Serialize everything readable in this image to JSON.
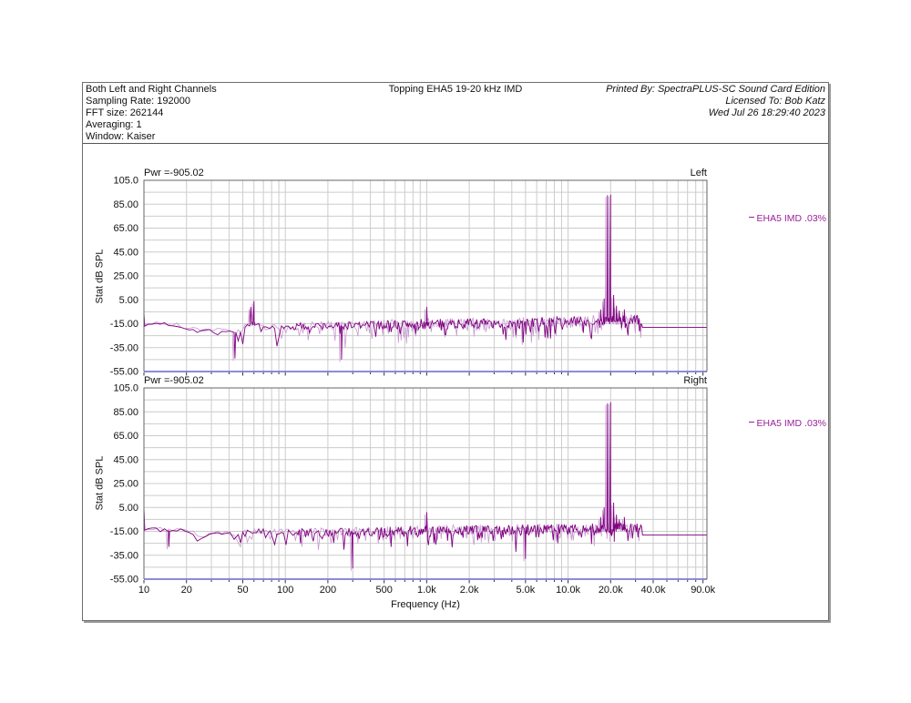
{
  "header": {
    "left_lines": [
      "Both Left and Right Channels",
      "Sampling Rate: 192000",
      "FFT size: 262144",
      "Averaging: 1",
      "Window: Kaiser"
    ],
    "title": "Topping EHA5 19-20 kHz IMD",
    "right_lines": [
      "Printed By: SpectraPLUS-SC Sound Card Edition",
      "Licensed To: Bob Katz",
      "Wed Jul 26 18:29:40 2023"
    ]
  },
  "colors": {
    "trace": "#800080",
    "trace_light": "#c79ad0",
    "legend_text": "#992299",
    "bottom_axis": "#4848c8",
    "grid": "#cccccc",
    "plot_border": "#666666",
    "tick": "#333333",
    "text": "#111111"
  },
  "chart_data": [
    {
      "type": "line",
      "name": "left-channel-spectrum",
      "corner_label": "Left",
      "pwr_label": "Pwr =-905.02",
      "legend": "EHA5 IMD .03%",
      "ylabel": "Stat dB SPL",
      "xlabel": "Frequency (Hz)",
      "x_scale": "log",
      "xlim": [
        10,
        96000
      ],
      "ylim": [
        -55,
        105
      ],
      "grid": true,
      "y_ticks": [
        [
          105,
          "105.0"
        ],
        [
          85,
          "85.00"
        ],
        [
          65,
          "65.00"
        ],
        [
          45,
          "45.00"
        ],
        [
          25,
          "25.00"
        ],
        [
          5,
          "5.00"
        ],
        [
          -15,
          "-15.00"
        ],
        [
          -35,
          "-35.00"
        ],
        [
          -55,
          "-55.00"
        ]
      ],
      "x_ticks": [
        [
          10,
          "10"
        ],
        [
          20,
          "20"
        ],
        [
          50,
          "50"
        ],
        [
          100,
          "100"
        ],
        [
          200,
          "200"
        ],
        [
          500,
          "500"
        ],
        [
          1000,
          "1.0k"
        ],
        [
          2000,
          "2.0k"
        ],
        [
          5000,
          "5.0k"
        ],
        [
          10000,
          "10.0k"
        ],
        [
          20000,
          "20.0k"
        ],
        [
          40000,
          "40.0k"
        ],
        [
          90000,
          "90.0k"
        ]
      ],
      "noise_floor_envelope": [
        [
          10,
          -16
        ],
        [
          13,
          -14.5
        ],
        [
          18,
          -17
        ],
        [
          24,
          -21
        ],
        [
          32,
          -20
        ],
        [
          40,
          -22
        ],
        [
          50,
          -20
        ],
        [
          57,
          -14
        ],
        [
          62,
          -16
        ],
        [
          70,
          -19
        ],
        [
          85,
          -18
        ],
        [
          120,
          -17.5
        ],
        [
          200,
          -17
        ],
        [
          400,
          -16
        ],
        [
          800,
          -15.5
        ],
        [
          1600,
          -15
        ],
        [
          3000,
          -14.5
        ],
        [
          6000,
          -14
        ],
        [
          10000,
          -13
        ],
        [
          15000,
          -12.5
        ],
        [
          20000,
          -12
        ],
        [
          27000,
          -12
        ],
        [
          33500,
          -12.5
        ]
      ],
      "peaks": [
        [
          10,
          -6
        ],
        [
          44,
          -44
        ],
        [
          57,
          -1
        ],
        [
          60,
          4
        ],
        [
          250,
          -45
        ],
        [
          1000,
          -1
        ],
        [
          17000,
          -3
        ],
        [
          18000,
          6
        ],
        [
          19000,
          92.5
        ],
        [
          20000,
          93
        ],
        [
          21000,
          9
        ],
        [
          22000,
          0
        ],
        [
          23000,
          -4
        ],
        [
          25000,
          -3
        ]
      ],
      "flat_tail": {
        "from_hz": 33500,
        "level_db": -18
      },
      "seed": 7
    },
    {
      "type": "line",
      "name": "right-channel-spectrum",
      "corner_label": "Right",
      "pwr_label": "Pwr =-905.02",
      "legend": "EHA5 IMD .03%",
      "ylabel": "Stat dB SPL",
      "xlabel": "Frequency (Hz)",
      "x_scale": "log",
      "xlim": [
        10,
        96000
      ],
      "ylim": [
        -55,
        105
      ],
      "grid": true,
      "y_ticks": [
        [
          105,
          "105.0"
        ],
        [
          85,
          "85.00"
        ],
        [
          65,
          "65.00"
        ],
        [
          45,
          "45.00"
        ],
        [
          25,
          "25.00"
        ],
        [
          5,
          "5.00"
        ],
        [
          -15,
          "-15.00"
        ],
        [
          -35,
          "-35.00"
        ],
        [
          -55,
          "-55.00"
        ]
      ],
      "x_ticks": [
        [
          10,
          "10"
        ],
        [
          20,
          "20"
        ],
        [
          50,
          "50"
        ],
        [
          100,
          "100"
        ],
        [
          200,
          "200"
        ],
        [
          500,
          "500"
        ],
        [
          1000,
          "1.0k"
        ],
        [
          2000,
          "2.0k"
        ],
        [
          5000,
          "5.0k"
        ],
        [
          10000,
          "10.0k"
        ],
        [
          20000,
          "20.0k"
        ],
        [
          40000,
          "40.0k"
        ],
        [
          90000,
          "90.0k"
        ]
      ],
      "noise_floor_envelope": [
        [
          10,
          -13
        ],
        [
          14,
          -14
        ],
        [
          20,
          -14
        ],
        [
          26,
          -20
        ],
        [
          34,
          -16
        ],
        [
          45,
          -18
        ],
        [
          60,
          -15
        ],
        [
          90,
          -16
        ],
        [
          150,
          -16
        ],
        [
          300,
          -15.5
        ],
        [
          600,
          -15
        ],
        [
          1200,
          -14.5
        ],
        [
          2500,
          -14
        ],
        [
          5000,
          -13.5
        ],
        [
          10000,
          -13
        ],
        [
          16000,
          -12.5
        ],
        [
          22000,
          -12
        ],
        [
          33500,
          -12.5
        ]
      ],
      "peaks": [
        [
          10,
          5
        ],
        [
          15,
          -28
        ],
        [
          300,
          -46
        ],
        [
          1000,
          1
        ],
        [
          5000,
          -38
        ],
        [
          17000,
          -3
        ],
        [
          18000,
          5
        ],
        [
          19000,
          92
        ],
        [
          20000,
          93
        ],
        [
          21000,
          9
        ],
        [
          22000,
          -1
        ],
        [
          23000,
          -5
        ],
        [
          25000,
          -3
        ]
      ],
      "flat_tail": {
        "from_hz": 33500,
        "level_db": -18
      },
      "seed": 41
    }
  ]
}
